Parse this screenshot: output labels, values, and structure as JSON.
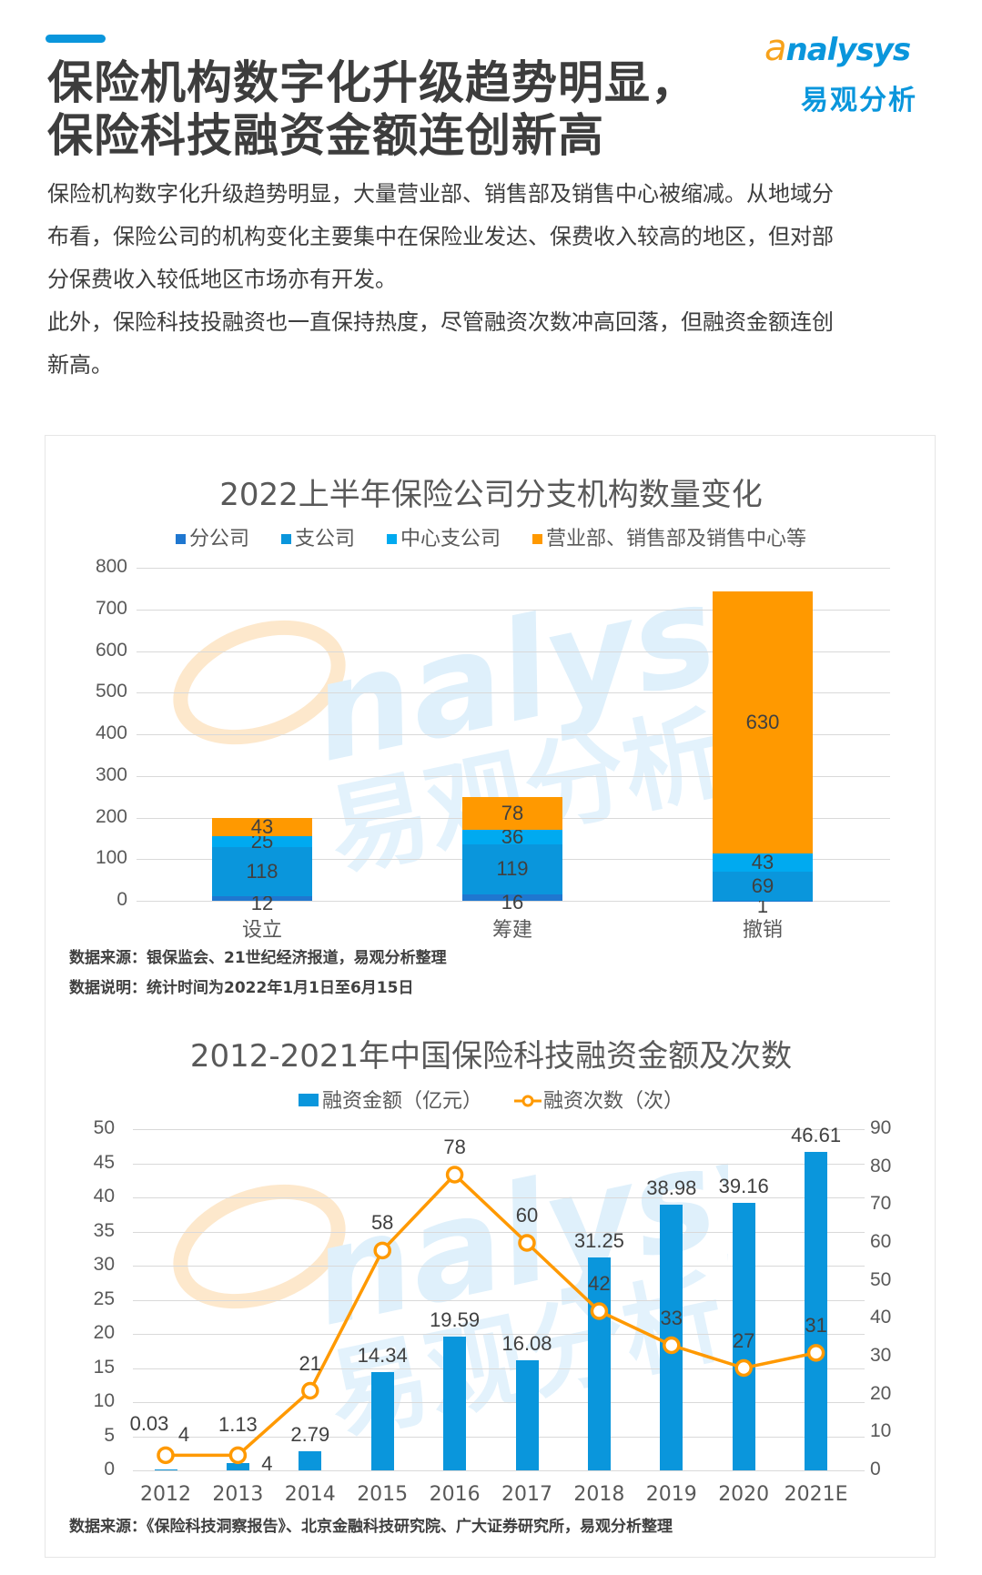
{
  "header": {
    "title_line1": "保险机构数字化升级趋势明显，",
    "title_line2": "保险科技融资金额连创新高",
    "logo_en": "nalysys",
    "logo_en_prefix": "a",
    "logo_cn": "易观分析"
  },
  "body": {
    "para1_line1": "保险机构数字化升级趋势明显，大量营业部、销售部及销售中心被缩减。从地域分",
    "para1_line2": "布看，保险公司的机构变化主要集中在保险业发达、保费收入较高的地区，但对部",
    "para1_line3": "分保费收入较低地区市场亦有开发。",
    "para2_line1": "此外，保险科技投融资也一直保持热度，尽管融资次数冲高回落，但融资金额连创",
    "para2_line2": "新高。"
  },
  "colors": {
    "accent": "#0a96dc",
    "fen": "#1f77d0",
    "zhi": "#0a96dc",
    "zhongxin": "#00aaf0",
    "yingye": "#ff9900",
    "bar": "#0a96dc",
    "line": "#ff9900"
  },
  "chart1": {
    "source": "数据来源：银保监会、21世纪经济报道，易观分析整理",
    "note": "数据说明：统计时间为2022年1月1日至6月15日"
  },
  "chart2": {
    "source": "数据来源：《保险科技洞察报告》、北京金融科技研究院、广大证券研究所，易观分析整理"
  },
  "chart_data": [
    {
      "type": "bar",
      "stacked": true,
      "title": "2022上半年保险公司分支机构数量变化",
      "categories": [
        "设立",
        "筹建",
        "撤销"
      ],
      "series": [
        {
          "name": "分公司",
          "values": [
            12,
            16,
            1
          ]
        },
        {
          "name": "支公司",
          "values": [
            118,
            119,
            69
          ]
        },
        {
          "name": "中心支公司",
          "values": [
            25,
            36,
            43
          ]
        },
        {
          "name": "营业部、销售部及销售中心等",
          "values": [
            43,
            78,
            630
          ]
        }
      ],
      "yticks": [
        "0",
        "100",
        "200",
        "300",
        "400",
        "500",
        "600",
        "700",
        "800"
      ],
      "ylim": [
        0,
        800
      ],
      "legend_position": "top",
      "grid": true
    },
    {
      "type": "bar+line",
      "title": "2012-2021年中国保险科技融资金额及次数",
      "categories": [
        "2012",
        "2013",
        "2014",
        "2015",
        "2016",
        "2017",
        "2018",
        "2019",
        "2020",
        "2021E"
      ],
      "series": [
        {
          "name": "融资金额（亿元）",
          "type": "bar",
          "axis": "left",
          "values": [
            0.03,
            1.13,
            2.79,
            14.34,
            19.59,
            16.08,
            31.25,
            38.98,
            39.16,
            46.61
          ]
        },
        {
          "name": "融资次数（次）",
          "type": "line",
          "axis": "right",
          "values": [
            4,
            4,
            21,
            58,
            78,
            60,
            42,
            33,
            27,
            31
          ]
        }
      ],
      "yticks_left": [
        "0",
        "5",
        "10",
        "15",
        "20",
        "25",
        "30",
        "35",
        "40",
        "45",
        "50"
      ],
      "yticks_right": [
        "0",
        "10",
        "20",
        "30",
        "40",
        "50",
        "60",
        "70",
        "80",
        "90"
      ],
      "ylim_left": [
        0,
        50
      ],
      "ylim_right": [
        0,
        90
      ],
      "legend_position": "top",
      "grid": true
    }
  ]
}
